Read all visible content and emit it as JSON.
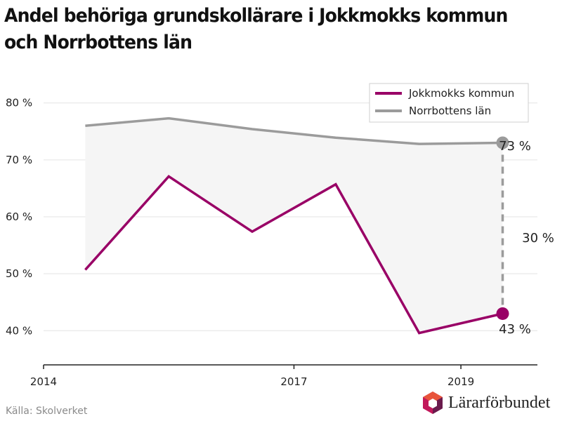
{
  "title": "Andel behöriga grundskollärare i Jokkmokks kommun och Norrbottens län",
  "source": "Källa: Skolverket",
  "logo_text": "Lärarförbundet",
  "colors": {
    "jokkmokk": "#990066",
    "norrbotten": "#9b9b9b",
    "gap_fill": "#f5f5f5",
    "grid": "#e3e3e3",
    "logo_magenta": "#c2185b",
    "logo_dark": "#6a1b4d",
    "logo_orange": "#e8543b"
  },
  "chart_data": {
    "type": "line",
    "title": "Andel behöriga grundskollärare i Jokkmokks kommun och Norrbottens län",
    "xlabel": "",
    "ylabel": "",
    "x_ticks": [
      "2014",
      "2017",
      "2019"
    ],
    "y_ticks": [
      "40 %",
      "50 %",
      "60 %",
      "70 %",
      "80 %"
    ],
    "ylim": [
      34,
      86
    ],
    "xlim": [
      "2014-01-01",
      "2019-12-01"
    ],
    "grid": "horizontal",
    "legend": "top-right",
    "x": [
      "2014-07",
      "2015-07",
      "2016-07",
      "2017-07",
      "2018-07",
      "2019-07"
    ],
    "series": [
      {
        "name": "Jokkmokks kommun",
        "values": [
          50.7,
          67.1,
          57.4,
          65.7,
          39.6,
          43
        ]
      },
      {
        "name": "Norrbottens län",
        "values": [
          76.0,
          77.3,
          75.4,
          73.9,
          72.8,
          73
        ]
      }
    ],
    "annotations": {
      "norrbotten_end": "73 %",
      "jokkmokk_end": "43 %",
      "gap": "30 %"
    }
  }
}
